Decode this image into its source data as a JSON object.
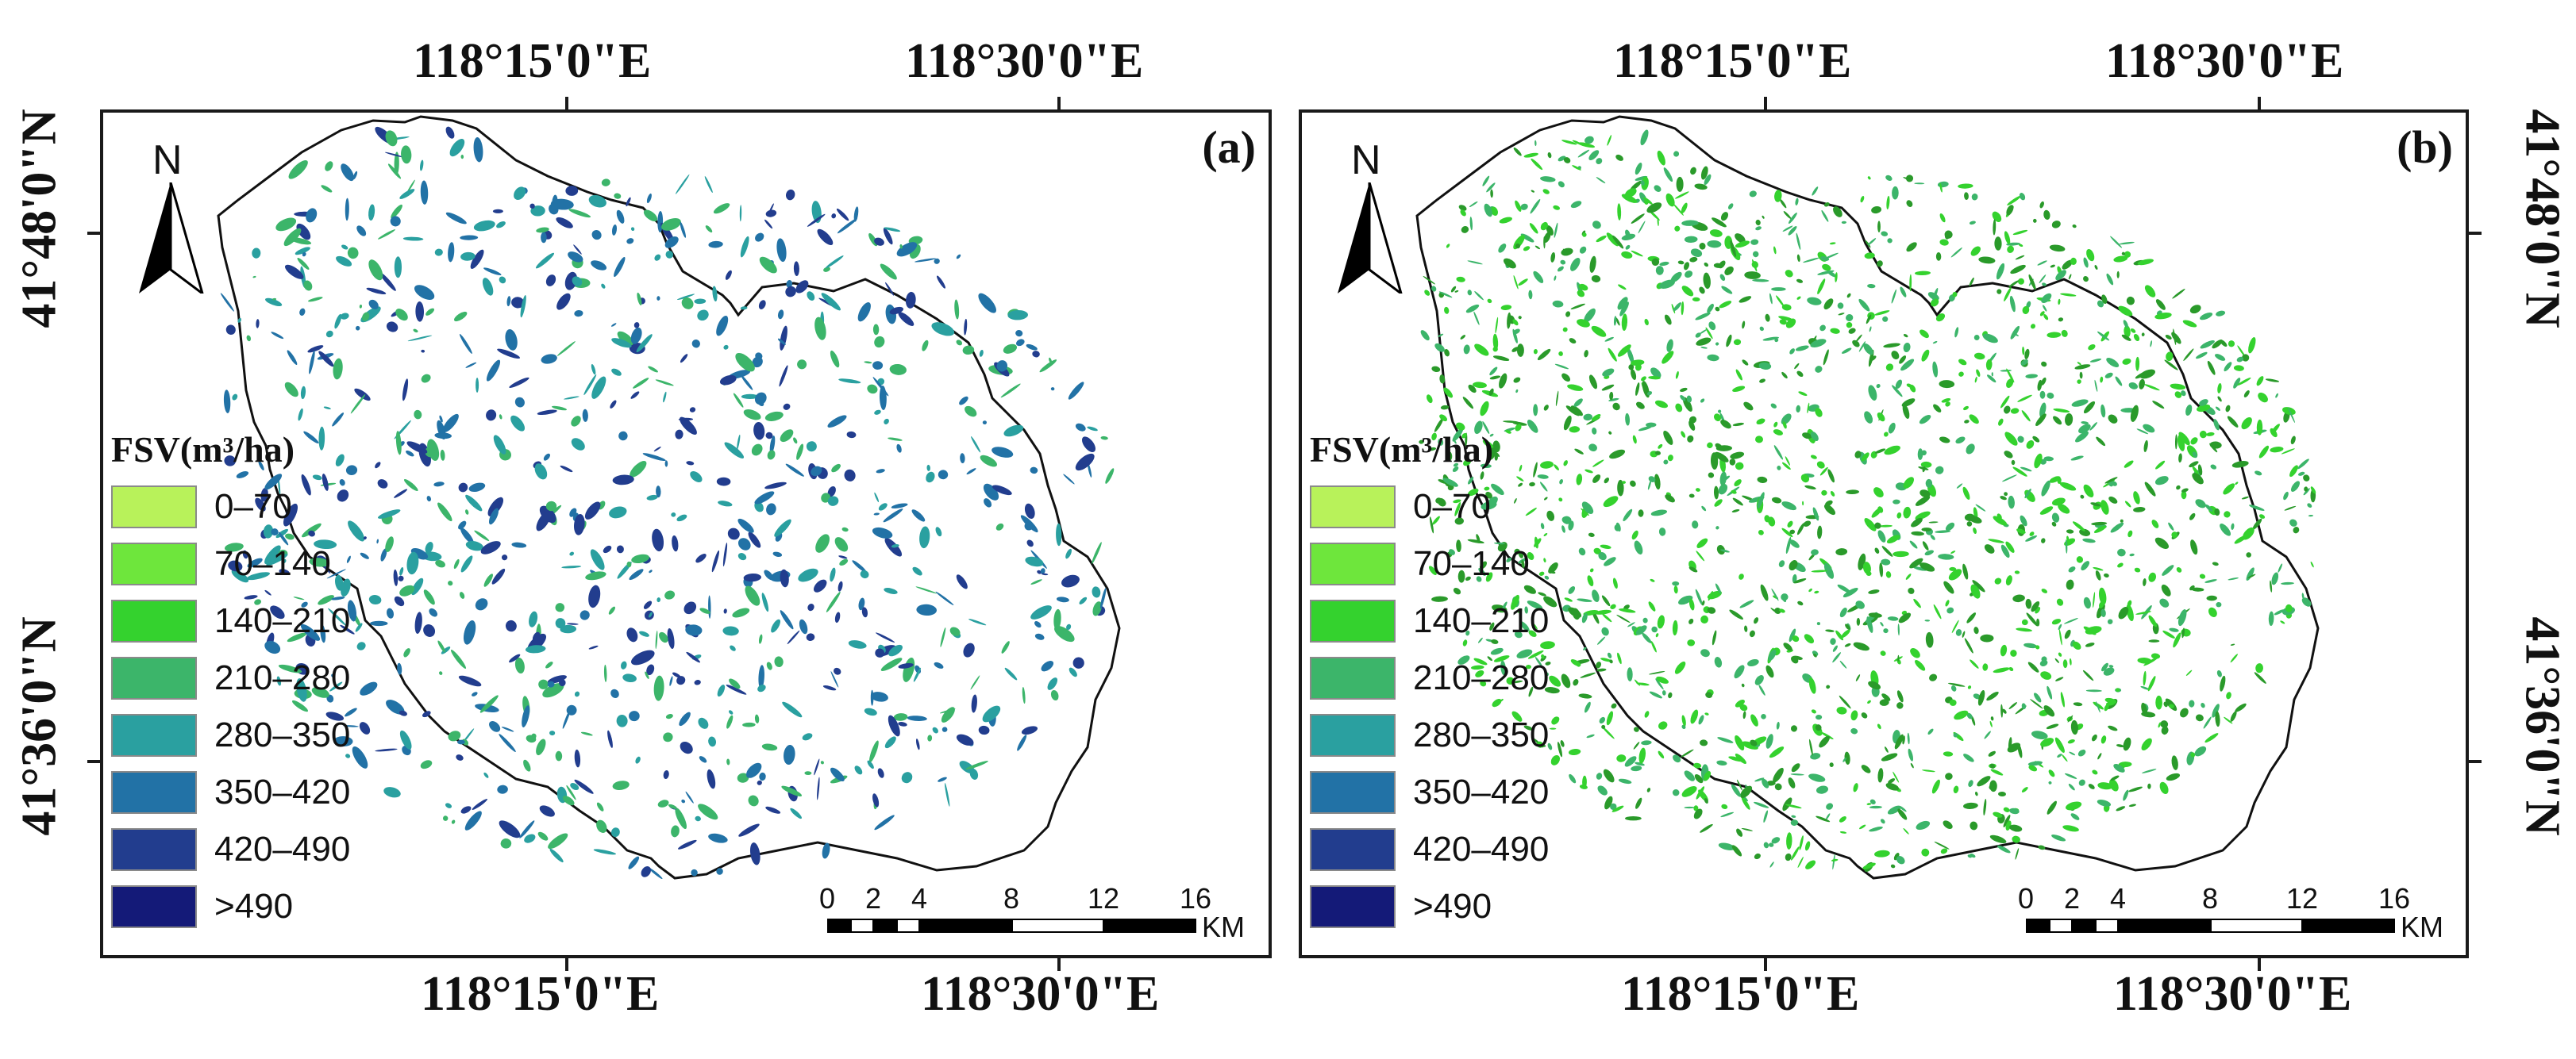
{
  "coordinates": {
    "lon_left": "118°15'0\"E",
    "lon_right": "118°30'0\"E",
    "lat_top": "41°48'0\"N",
    "lat_bottom": "41°36'0\"N"
  },
  "north_arrow": {
    "letter": "N",
    "icon": "north-arrow-icon"
  },
  "legend": {
    "title": "FSV(m³/ha)",
    "classes": [
      {
        "label": "0–70",
        "color": "#b8f25a"
      },
      {
        "label": "70–140",
        "color": "#6ee63c"
      },
      {
        "label": "140–210",
        "color": "#34d22e"
      },
      {
        "label": "210–280",
        "color": "#3cb56a"
      },
      {
        "label": "280–350",
        "color": "#2aa0a0"
      },
      {
        "label": "350–420",
        "color": "#2272a6"
      },
      {
        "label": "420–490",
        "color": "#223d8e"
      },
      {
        "label": ">490",
        "color": "#141a78"
      }
    ]
  },
  "scale_bar": {
    "ticks": [
      "0",
      "2",
      "4",
      "8",
      "12",
      "16"
    ],
    "unit": "KM"
  },
  "panels": [
    {
      "id": "a",
      "label": "(a)",
      "dominant_colors": [
        "#3cb56a",
        "#2aa0a0",
        "#2272a6",
        "#223d8e"
      ]
    },
    {
      "id": "b",
      "label": "(b)",
      "dominant_colors": [
        "#34d22e",
        "#3cb56a",
        "#2a9a2a"
      ]
    }
  ]
}
